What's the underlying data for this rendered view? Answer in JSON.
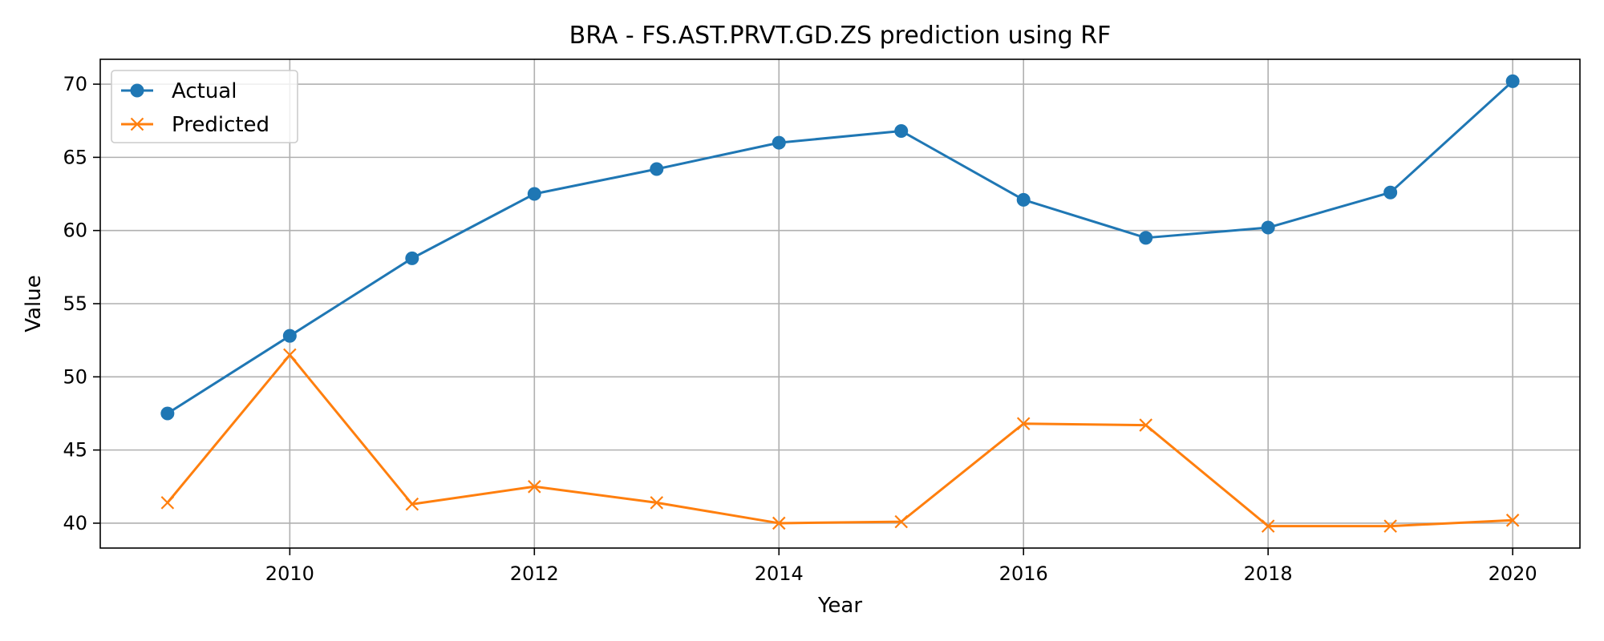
{
  "chart_data": {
    "type": "line",
    "title": "BRA - FS.AST.PRVT.GD.ZS prediction using RF",
    "xlabel": "Year",
    "ylabel": "Value",
    "xlim": [
      2008.45,
      2020.55
    ],
    "ylim": [
      38.3,
      71.7
    ],
    "x_ticks": [
      2010,
      2012,
      2014,
      2016,
      2018,
      2020
    ],
    "y_ticks": [
      40,
      45,
      50,
      55,
      60,
      65,
      70
    ],
    "grid": true,
    "legend_position": "top-left",
    "x": [
      2009,
      2010,
      2011,
      2012,
      2013,
      2014,
      2015,
      2016,
      2017,
      2018,
      2019,
      2020
    ],
    "series": [
      {
        "name": "Actual",
        "color": "#1f77b4",
        "marker": "circle",
        "values": [
          47.5,
          52.8,
          58.1,
          62.5,
          64.2,
          66.0,
          66.8,
          62.1,
          59.5,
          60.2,
          62.6,
          70.2
        ]
      },
      {
        "name": "Predicted",
        "color": "#ff7f0e",
        "marker": "x",
        "values": [
          41.4,
          51.5,
          41.3,
          42.5,
          41.4,
          40.0,
          40.1,
          46.8,
          46.7,
          39.8,
          39.8,
          40.2
        ]
      }
    ]
  }
}
